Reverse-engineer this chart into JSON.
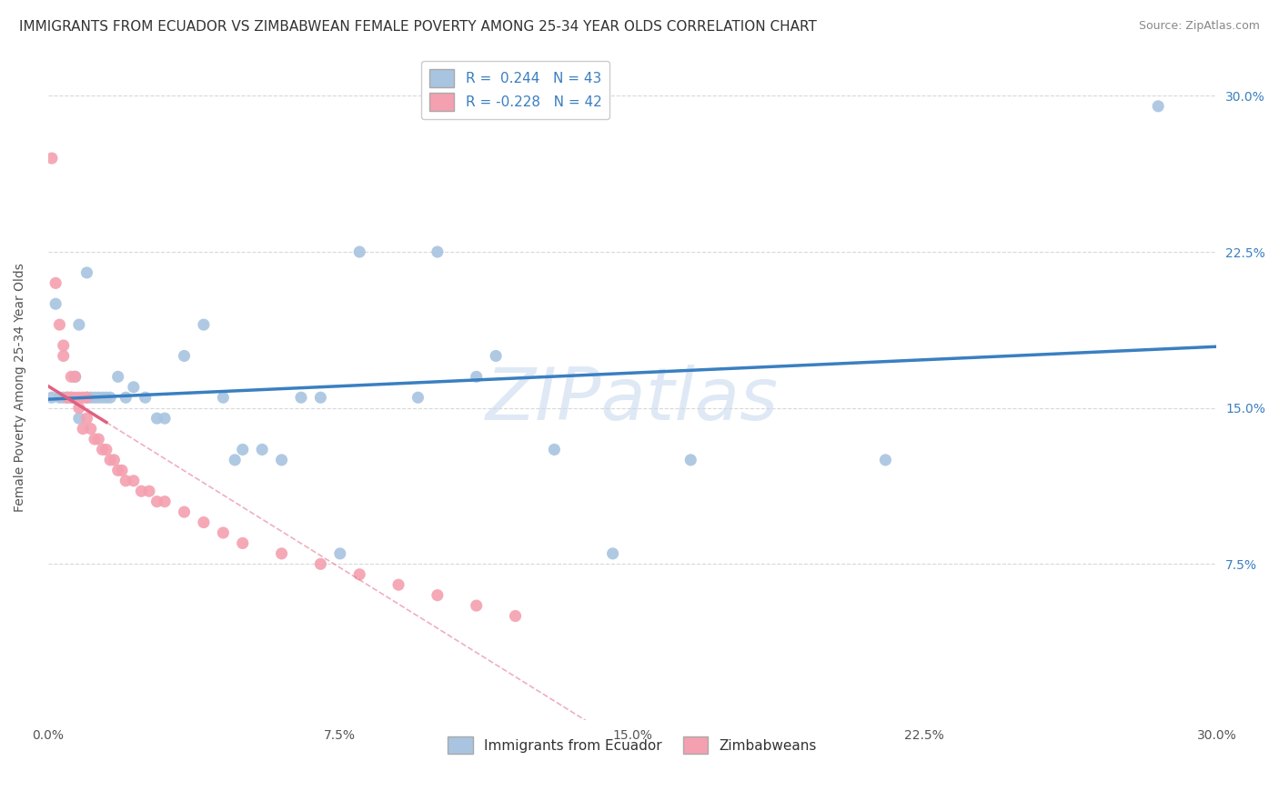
{
  "title": "IMMIGRANTS FROM ECUADOR VS ZIMBABWEAN FEMALE POVERTY AMONG 25-34 YEAR OLDS CORRELATION CHART",
  "source": "Source: ZipAtlas.com",
  "ylabel": "Female Poverty Among 25-34 Year Olds",
  "xlim": [
    0.0,
    0.3
  ],
  "ylim": [
    0.0,
    0.32
  ],
  "xtick_labels": [
    "0.0%",
    "7.5%",
    "15.0%",
    "22.5%",
    "30.0%"
  ],
  "xtick_vals": [
    0.0,
    0.075,
    0.15,
    0.225,
    0.3
  ],
  "ytick_labels": [
    "7.5%",
    "15.0%",
    "22.5%",
    "30.0%"
  ],
  "ytick_vals": [
    0.075,
    0.15,
    0.225,
    0.3
  ],
  "r_ecuador": 0.244,
  "n_ecuador": 43,
  "r_zimbabwe": -0.228,
  "n_zimbabwe": 42,
  "ecuador_color": "#a8c4e0",
  "zimbabwe_color": "#f4a0b0",
  "ecuador_line_color": "#3a7fc1",
  "zimbabwe_line_color": "#e06080",
  "ecuador_scatter": [
    [
      0.001,
      0.155
    ],
    [
      0.002,
      0.2
    ],
    [
      0.003,
      0.155
    ],
    [
      0.004,
      0.155
    ],
    [
      0.005,
      0.155
    ],
    [
      0.006,
      0.155
    ],
    [
      0.007,
      0.165
    ],
    [
      0.008,
      0.145
    ],
    [
      0.008,
      0.19
    ],
    [
      0.01,
      0.155
    ],
    [
      0.01,
      0.215
    ],
    [
      0.011,
      0.155
    ],
    [
      0.012,
      0.155
    ],
    [
      0.013,
      0.155
    ],
    [
      0.014,
      0.155
    ],
    [
      0.015,
      0.155
    ],
    [
      0.016,
      0.155
    ],
    [
      0.018,
      0.165
    ],
    [
      0.02,
      0.155
    ],
    [
      0.022,
      0.16
    ],
    [
      0.025,
      0.155
    ],
    [
      0.028,
      0.145
    ],
    [
      0.03,
      0.145
    ],
    [
      0.035,
      0.175
    ],
    [
      0.04,
      0.19
    ],
    [
      0.045,
      0.155
    ],
    [
      0.048,
      0.125
    ],
    [
      0.05,
      0.13
    ],
    [
      0.055,
      0.13
    ],
    [
      0.06,
      0.125
    ],
    [
      0.065,
      0.155
    ],
    [
      0.07,
      0.155
    ],
    [
      0.075,
      0.08
    ],
    [
      0.08,
      0.225
    ],
    [
      0.095,
      0.155
    ],
    [
      0.1,
      0.225
    ],
    [
      0.11,
      0.165
    ],
    [
      0.115,
      0.175
    ],
    [
      0.13,
      0.13
    ],
    [
      0.145,
      0.08
    ],
    [
      0.165,
      0.125
    ],
    [
      0.215,
      0.125
    ],
    [
      0.285,
      0.295
    ]
  ],
  "zimbabwe_scatter": [
    [
      0.001,
      0.27
    ],
    [
      0.002,
      0.21
    ],
    [
      0.003,
      0.19
    ],
    [
      0.004,
      0.18
    ],
    [
      0.004,
      0.175
    ],
    [
      0.005,
      0.155
    ],
    [
      0.006,
      0.165
    ],
    [
      0.006,
      0.155
    ],
    [
      0.007,
      0.165
    ],
    [
      0.007,
      0.155
    ],
    [
      0.008,
      0.155
    ],
    [
      0.008,
      0.15
    ],
    [
      0.009,
      0.155
    ],
    [
      0.009,
      0.14
    ],
    [
      0.01,
      0.155
    ],
    [
      0.01,
      0.145
    ],
    [
      0.011,
      0.14
    ],
    [
      0.012,
      0.135
    ],
    [
      0.013,
      0.135
    ],
    [
      0.014,
      0.13
    ],
    [
      0.015,
      0.13
    ],
    [
      0.016,
      0.125
    ],
    [
      0.017,
      0.125
    ],
    [
      0.018,
      0.12
    ],
    [
      0.019,
      0.12
    ],
    [
      0.02,
      0.115
    ],
    [
      0.022,
      0.115
    ],
    [
      0.024,
      0.11
    ],
    [
      0.026,
      0.11
    ],
    [
      0.028,
      0.105
    ],
    [
      0.03,
      0.105
    ],
    [
      0.035,
      0.1
    ],
    [
      0.04,
      0.095
    ],
    [
      0.045,
      0.09
    ],
    [
      0.05,
      0.085
    ],
    [
      0.06,
      0.08
    ],
    [
      0.07,
      0.075
    ],
    [
      0.08,
      0.07
    ],
    [
      0.09,
      0.065
    ],
    [
      0.1,
      0.06
    ],
    [
      0.11,
      0.055
    ],
    [
      0.12,
      0.05
    ]
  ],
  "watermark": "ZIPatlas",
  "background_color": "#ffffff",
  "grid_color": "#d8d8d8",
  "title_fontsize": 11,
  "axis_label_fontsize": 10,
  "tick_fontsize": 10,
  "legend_fontsize": 11
}
